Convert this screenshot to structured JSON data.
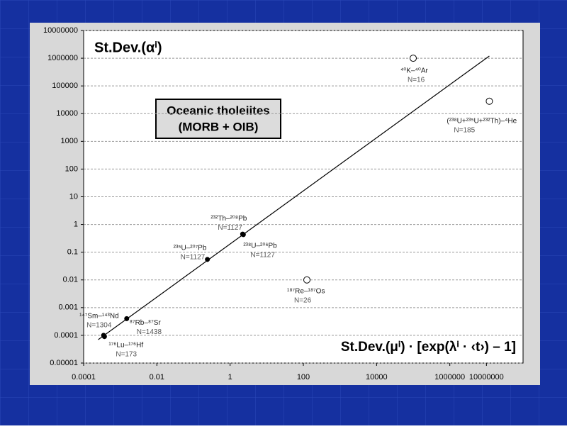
{
  "chart_data": {
    "type": "scatter",
    "title": "St.Dev.(αⁱ)",
    "x_label": "St.Dev.(μⁱ) · [exp(λⁱ · ‹t›) – 1]",
    "box_lines": [
      "Oceanic tholeiites",
      "(MORB + OIB)"
    ],
    "log_x": true,
    "log_y": true,
    "grid": true,
    "xlim": [
      0.0001,
      100000000
    ],
    "xticks": [
      0.0001,
      0.01,
      1,
      100,
      10000,
      1000000,
      10000000
    ],
    "ylim": [
      1e-05,
      10000000
    ],
    "yticks": [
      10000000,
      1000000,
      100000,
      10000,
      1000,
      100,
      10,
      1,
      0.1,
      0.01,
      0.001,
      0.0001,
      1e-05
    ],
    "points": [
      {
        "label": "¹⁴⁷Sm–¹⁴³Nd",
        "n": "N=1304",
        "x": 0.00035,
        "y": 0.0001,
        "filled": true
      },
      {
        "label": "¹⁷⁶Lu–¹⁷⁶Hf",
        "n": "N=173",
        "x": 0.00037,
        "y": 9e-05,
        "filled": true
      },
      {
        "label": "⁸⁷Rb–⁸⁷Sr",
        "n": "N=1438",
        "x": 0.0015,
        "y": 0.0004,
        "filled": true
      },
      {
        "label": "²³⁵U–²⁰⁷Pb",
        "n": "N=1127",
        "x": 0.24,
        "y": 0.055,
        "filled": true
      },
      {
        "label": "²³²Th–²⁰⁸Pb",
        "n": "N=1127",
        "x": 2.2,
        "y": 0.45,
        "filled": true
      },
      {
        "label": "²³⁸U–²⁰⁶Pb",
        "n": "N=1127",
        "x": 2.3,
        "y": 0.43,
        "filled": true
      },
      {
        "label": "¹⁸⁷Re–¹⁸⁷Os",
        "n": "N=26",
        "x": 125,
        "y": 0.01,
        "filled": false
      },
      {
        "label": "⁴⁰K–⁴⁰Ar",
        "n": "N=16",
        "x": 100000,
        "y": 1000000,
        "filled": false
      },
      {
        "label": "(²³⁸U+²³⁵U+²³²Th)–⁴He",
        "n": "N=185",
        "x": 12000000,
        "y": 28000,
        "filled": false
      }
    ],
    "fit_line": {
      "x": [
        0.00025,
        12000000
      ],
      "y": [
        7e-05,
        1200000
      ]
    },
    "color": "#000000"
  }
}
